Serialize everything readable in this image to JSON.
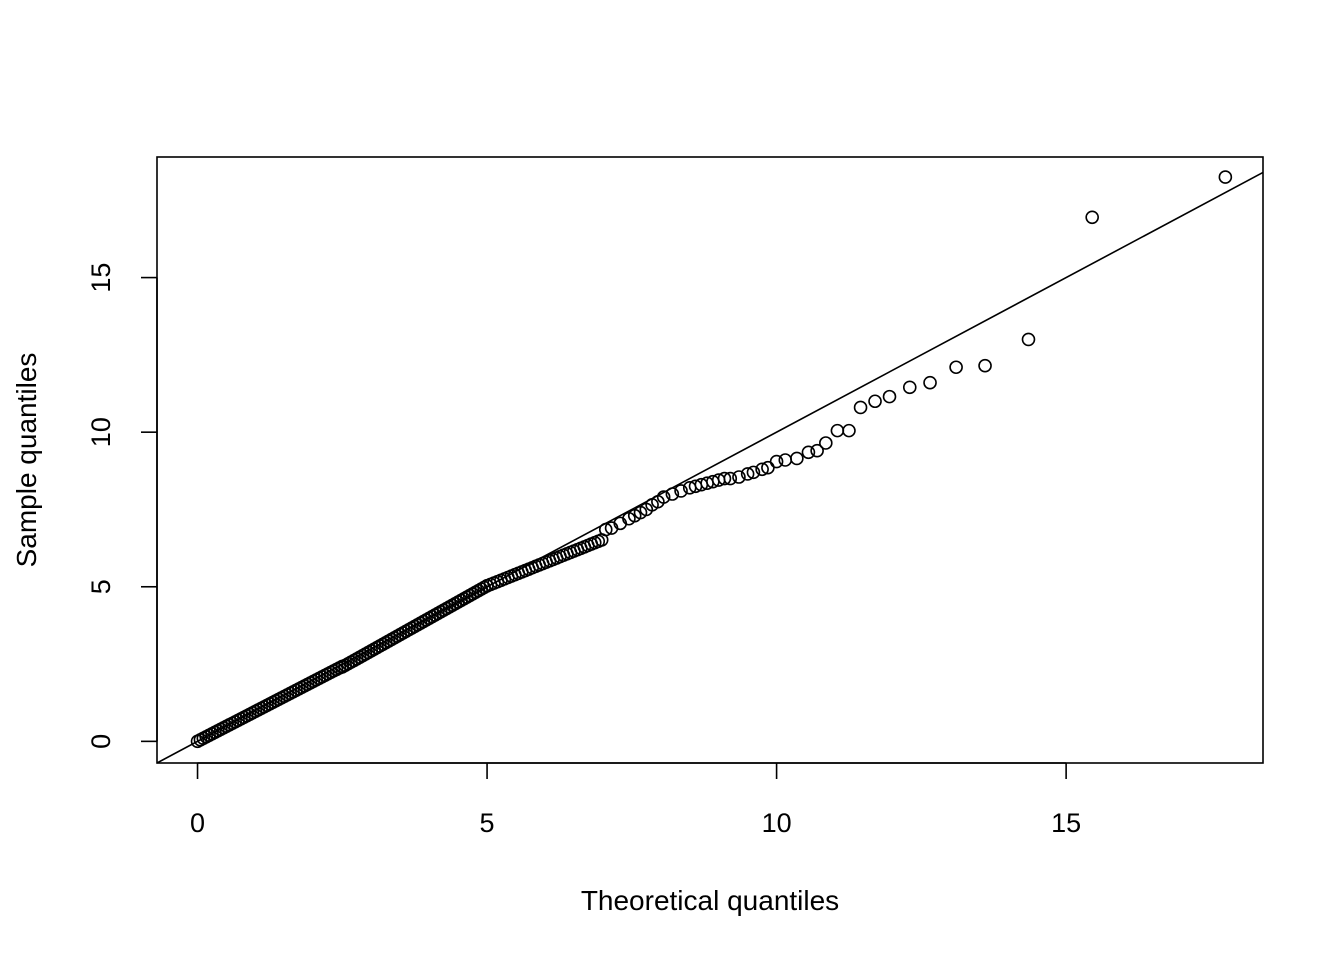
{
  "chart_data": {
    "type": "scatter",
    "title": "",
    "xlabel": "Theoretical quantiles",
    "ylabel": "Sample quantiles",
    "xlim": [
      -0.7,
      18.4
    ],
    "ylim": [
      -0.7,
      18.9
    ],
    "xticks": [
      0,
      5,
      10,
      15
    ],
    "yticks": [
      0,
      5,
      10,
      15
    ],
    "xtick_labels": [
      "0",
      "5",
      "10",
      "15"
    ],
    "ytick_labels": [
      "0",
      "5",
      "10",
      "15"
    ],
    "grid": false,
    "legend": "none",
    "marker": "open-circle",
    "color": "#000000",
    "reference_line": {
      "intercept": 0.0,
      "slope": 1.0
    },
    "dense_segments": [
      {
        "x0": 0.0,
        "x1": 2.5,
        "dx": 0.05,
        "slope": 0.97,
        "intercept": 0.0
      },
      {
        "x0": 2.5,
        "x1": 5.0,
        "dx": 0.05,
        "slope": 1.05,
        "intercept": -0.22
      },
      {
        "x0": 5.0,
        "x1": 7.0,
        "dx": 0.06,
        "slope": 0.75,
        "intercept": 1.28
      }
    ],
    "points": [
      [
        7.05,
        6.85
      ],
      [
        7.15,
        6.9
      ],
      [
        7.3,
        7.05
      ],
      [
        7.45,
        7.2
      ],
      [
        7.55,
        7.3
      ],
      [
        7.65,
        7.4
      ],
      [
        7.75,
        7.5
      ],
      [
        7.85,
        7.65
      ],
      [
        7.95,
        7.75
      ],
      [
        8.05,
        7.9
      ],
      [
        8.2,
        8.0
      ],
      [
        8.35,
        8.1
      ],
      [
        8.5,
        8.2
      ],
      [
        8.6,
        8.25
      ],
      [
        8.7,
        8.3
      ],
      [
        8.8,
        8.35
      ],
      [
        8.9,
        8.4
      ],
      [
        9.0,
        8.45
      ],
      [
        9.1,
        8.5
      ],
      [
        9.2,
        8.5
      ],
      [
        9.35,
        8.55
      ],
      [
        9.5,
        8.65
      ],
      [
        9.6,
        8.7
      ],
      [
        9.75,
        8.8
      ],
      [
        9.85,
        8.85
      ],
      [
        10.0,
        9.05
      ],
      [
        10.15,
        9.1
      ],
      [
        10.35,
        9.15
      ],
      [
        10.55,
        9.35
      ],
      [
        10.7,
        9.4
      ],
      [
        10.85,
        9.65
      ],
      [
        11.05,
        10.05
      ],
      [
        11.25,
        10.05
      ],
      [
        11.45,
        10.8
      ],
      [
        11.7,
        11.0
      ],
      [
        11.95,
        11.15
      ],
      [
        12.3,
        11.45
      ],
      [
        12.65,
        11.6
      ],
      [
        13.1,
        12.1
      ],
      [
        13.6,
        12.15
      ],
      [
        14.35,
        13.0
      ],
      [
        15.45,
        16.95
      ],
      [
        17.75,
        18.25
      ]
    ]
  }
}
